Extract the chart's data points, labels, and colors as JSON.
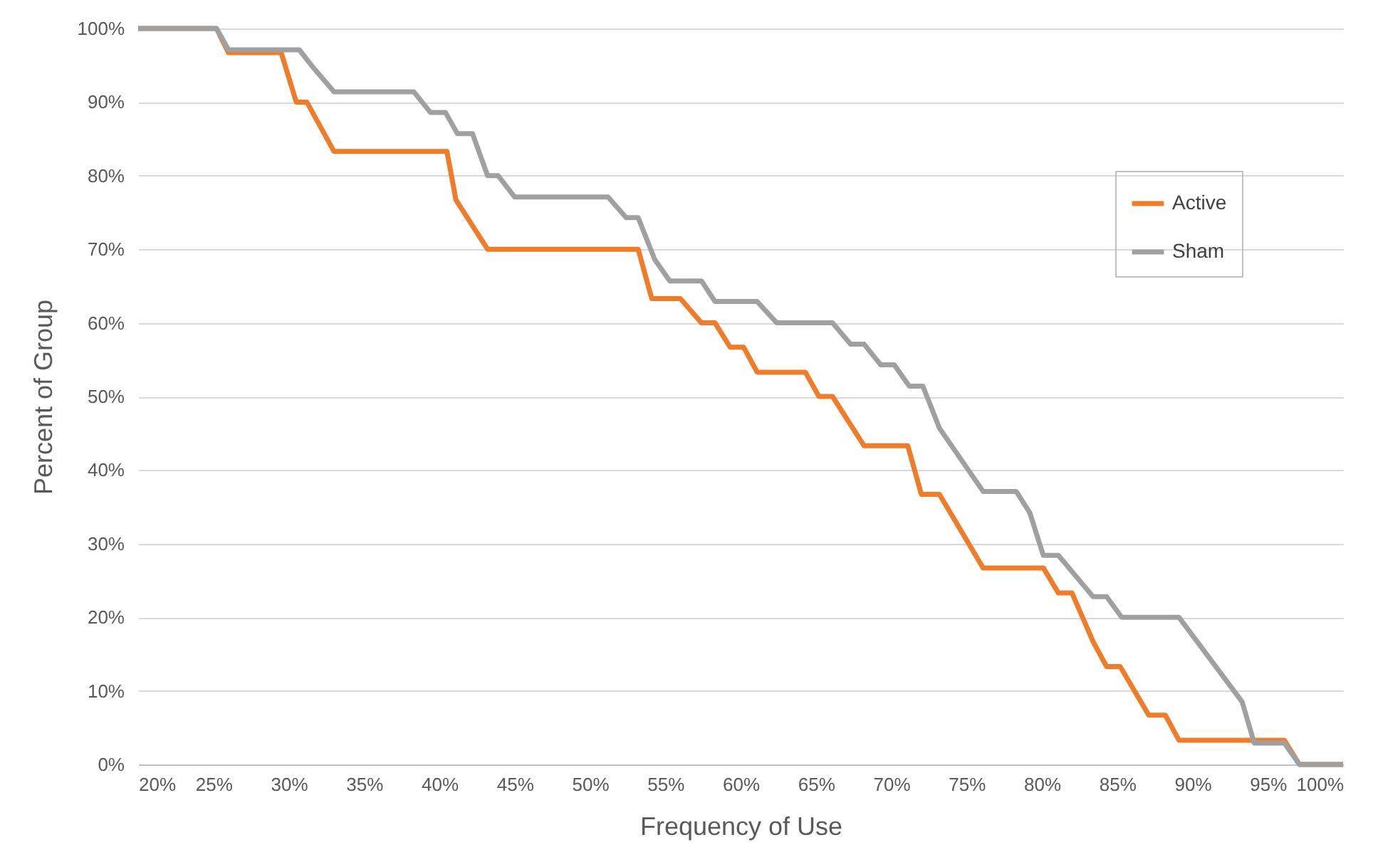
{
  "chart_data": {
    "type": "line",
    "xlabel": "Frequency of Use",
    "ylabel": "Percent of Group",
    "xlim": [
      20,
      100
    ],
    "ylim": [
      0,
      100
    ],
    "xticks": [
      {
        "value": 20,
        "label": "20%"
      },
      {
        "value": 25,
        "label": "25%"
      },
      {
        "value": 30,
        "label": "30%"
      },
      {
        "value": 35,
        "label": "35%"
      },
      {
        "value": 40,
        "label": "40%"
      },
      {
        "value": 45,
        "label": "45%"
      },
      {
        "value": 50,
        "label": "50%"
      },
      {
        "value": 55,
        "label": "55%"
      },
      {
        "value": 60,
        "label": "60%"
      },
      {
        "value": 65,
        "label": "65%"
      },
      {
        "value": 70,
        "label": "70%"
      },
      {
        "value": 75,
        "label": "75%"
      },
      {
        "value": 80,
        "label": "80%"
      },
      {
        "value": 85,
        "label": "85%"
      },
      {
        "value": 90,
        "label": "90%"
      },
      {
        "value": 95,
        "label": "95%"
      },
      {
        "value": 100,
        "label": "100%"
      }
    ],
    "yticks": [
      {
        "value": 0,
        "label": "0%"
      },
      {
        "value": 10,
        "label": "10%"
      },
      {
        "value": 20,
        "label": "20%"
      },
      {
        "value": 30,
        "label": "30%"
      },
      {
        "value": 40,
        "label": "40%"
      },
      {
        "value": 50,
        "label": "50%"
      },
      {
        "value": 60,
        "label": "60%"
      },
      {
        "value": 70,
        "label": "70%"
      },
      {
        "value": 80,
        "label": "80%"
      },
      {
        "value": 90,
        "label": "90%"
      },
      {
        "value": 100,
        "label": "100%"
      }
    ],
    "grid": "y",
    "legend": "top right",
    "marker": "none",
    "line_style": "solid",
    "series": [
      {
        "name": "Active",
        "color": "#f07c2a",
        "x": [
          20,
          25.2,
          26,
          29.5,
          30.5,
          31.2,
          33,
          40.5,
          41.1,
          43.2,
          53.2,
          54.1,
          56,
          57.4,
          58.3,
          59.3,
          60.2,
          61.1,
          64.3,
          65.2,
          66.1,
          68.2,
          71.1,
          72,
          73.2,
          76.1,
          80.1,
          81.1,
          82,
          83.4,
          84.3,
          85.2,
          87.1,
          88.2,
          89.1,
          96.1,
          97.1,
          100
        ],
        "values": [
          100,
          100,
          96.7,
          96.7,
          90,
          90,
          83.3,
          83.3,
          76.7,
          70,
          70,
          63.3,
          63.3,
          60,
          60,
          56.7,
          56.7,
          53.3,
          53.3,
          50,
          50,
          43.3,
          43.3,
          36.7,
          36.7,
          26.7,
          26.7,
          23.3,
          23.3,
          16.7,
          13.3,
          13.3,
          6.7,
          6.7,
          3.3,
          3.3,
          0,
          0
        ]
      },
      {
        "name": "Sham",
        "color": "#a0a0a0",
        "x": [
          20,
          25.2,
          26,
          30.7,
          31.5,
          33,
          38.3,
          39.4,
          40.4,
          41.2,
          42.2,
          43.2,
          43.9,
          45,
          51.2,
          52.4,
          53.2,
          54.3,
          55.3,
          57.4,
          58.3,
          61.1,
          62.4,
          66.1,
          67.3,
          68.2,
          69.3,
          70.2,
          71.2,
          72.1,
          73.2,
          76.1,
          78.3,
          79.2,
          80.1,
          81.1,
          83.4,
          84.3,
          85.3,
          89.1,
          93.3,
          94.1,
          96.1,
          97.1,
          100
        ],
        "values": [
          100,
          100,
          97.1,
          97.1,
          95,
          91.4,
          91.4,
          88.6,
          88.6,
          85.7,
          85.7,
          80,
          80,
          77.1,
          77.1,
          74.3,
          74.3,
          68.6,
          65.7,
          65.7,
          62.9,
          62.9,
          60,
          60,
          57.1,
          57.1,
          54.3,
          54.3,
          51.4,
          51.4,
          45.7,
          37.1,
          37.1,
          34.2,
          28.4,
          28.4,
          22.8,
          22.8,
          20,
          20,
          8.5,
          2.9,
          2.9,
          0,
          0
        ]
      }
    ]
  }
}
